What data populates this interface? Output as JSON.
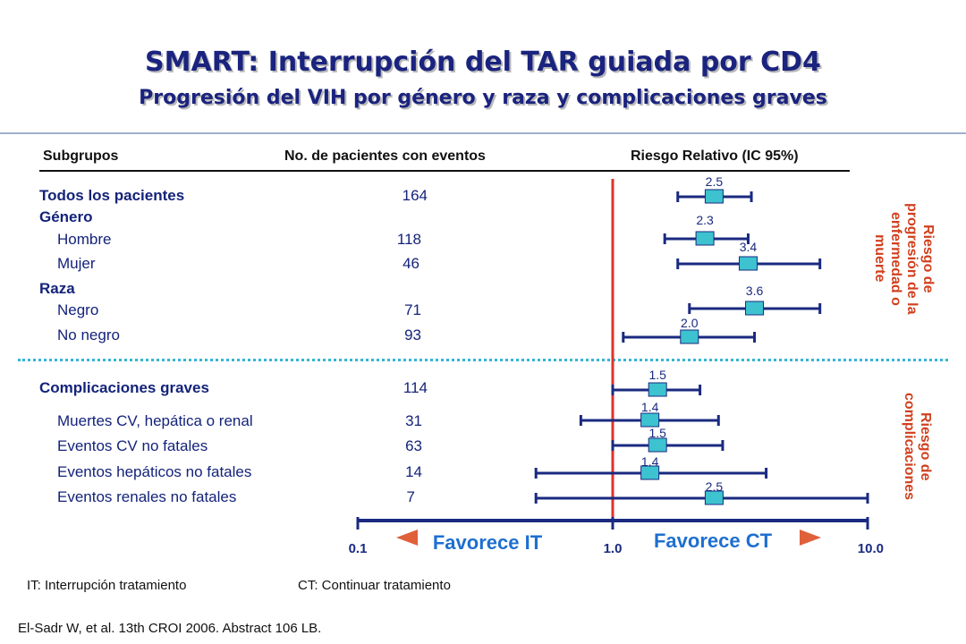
{
  "title": "SMART: Interrupción del TAR guiada por CD4",
  "subtitle": "Progresión del VIH por género y raza y complicaciones graves",
  "headers": {
    "subgroups": "Subgrupos",
    "events": "No. de pacientes con eventos",
    "rr": "Riesgo Relativo (IC 95%)"
  },
  "rows": [
    {
      "label": "Todos los pacientes",
      "count": "164"
    },
    {
      "label": "Género",
      "count": ""
    },
    {
      "label": "Hombre",
      "count": "118"
    },
    {
      "label": "Mujer",
      "count": "46"
    },
    {
      "label": "Raza",
      "count": ""
    },
    {
      "label": "Negro",
      "count": "71"
    },
    {
      "label": "No negro",
      "count": "93"
    },
    {
      "label": "Complicaciones graves",
      "count": "114"
    },
    {
      "label": "Muertes CV, hepática o renal",
      "count": "31"
    },
    {
      "label": "Eventos CV no fatales",
      "count": "63"
    },
    {
      "label": "Eventos hepáticos no fatales",
      "count": "14"
    },
    {
      "label": "Eventos renales no fatales",
      "count": "7"
    }
  ],
  "side_labels": {
    "progression": "Riesgo de progresión de la enfermedad o muerte",
    "complications": "Riesgo de complicaciones"
  },
  "chart_data": {
    "type": "forest",
    "scale": "log",
    "xlim": [
      0.1,
      10.0
    ],
    "ticks": [
      "0.1",
      "1.0",
      "10.0"
    ],
    "reference": 1.0,
    "favors_left": "Favorece IT",
    "favors_right": "Favorece CT",
    "estimates": [
      {
        "row": "Todos los pacientes",
        "rr": 2.5,
        "lo": 1.8,
        "hi": 3.5
      },
      {
        "row": "Hombre",
        "rr": 2.3,
        "lo": 1.6,
        "hi": 3.4
      },
      {
        "row": "Mujer",
        "rr": 3.4,
        "lo": 1.8,
        "hi": 6.5
      },
      {
        "row": "Negro",
        "rr": 3.6,
        "lo": 2.0,
        "hi": 6.5
      },
      {
        "row": "No negro",
        "rr": 2.0,
        "lo": 1.1,
        "hi": 3.6
      },
      {
        "row": "Complicaciones graves",
        "rr": 1.5,
        "lo": 1.0,
        "hi": 2.2
      },
      {
        "row": "Muertes CV, hepática o renal",
        "rr": 1.4,
        "lo": 0.75,
        "hi": 2.6
      },
      {
        "row": "Eventos CV no fatales",
        "rr": 1.5,
        "lo": 1.0,
        "hi": 2.7
      },
      {
        "row": "Eventos hepáticos no fatales",
        "rr": 1.4,
        "lo": 0.5,
        "hi": 4.0
      },
      {
        "row": "Eventos renales no fatales",
        "rr": 2.5,
        "lo": 0.5,
        "hi": 10.0
      }
    ],
    "estimate_labels": [
      "2.5",
      "2.3",
      "3.4",
      "3.6",
      "2.0",
      "1.5",
      "1.4",
      "1.5",
      "1.4",
      "2.5"
    ]
  },
  "footnotes": {
    "it": "IT: Interrupción tratamiento",
    "ct": "CT: Continuar tratamiento"
  },
  "citation": "El-Sadr W, et al. 13th CROI 2006. Abstract 106 LB.",
  "colors": {
    "title": "#1a237e",
    "text": "#14237a",
    "marker": "#3cc3cf",
    "ci_line": "#1a2a80",
    "reference_line": "#e0322a",
    "side_label": "#d1401e",
    "divider": "#35b6d6",
    "arrow": "#e0603a"
  }
}
